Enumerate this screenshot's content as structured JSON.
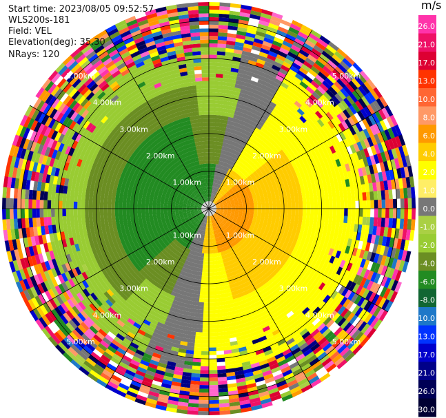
{
  "header": {
    "start_time": "Start time: 2023/08/05 09:52:57",
    "station": "WLS200s-181",
    "field": "Field: VEL",
    "elevation": "Elevation(deg): 35.30",
    "nrays": "NRays: 120"
  },
  "chart_data": {
    "type": "ppi_polar",
    "field": "VEL",
    "units": "m/s",
    "range_rings_km": [
      1.0,
      2.0,
      3.0,
      4.0,
      5.0
    ],
    "ring_labels": [
      "1.00km",
      "2.00km",
      "3.00km",
      "4.00km",
      "5.00km"
    ],
    "radial_lines_deg": [
      0,
      30,
      60,
      90,
      120,
      150
    ],
    "max_range_km": 5.5,
    "colorbar": {
      "unit": "m/s",
      "ticks": [
        "26.0",
        "21.0",
        "17.0",
        "13.0",
        "10.0",
        "8.0",
        "6.0",
        "4.0",
        "2.0",
        "1.0",
        "0.0",
        "-1.0",
        "-2.0",
        "-4.0",
        "-6.0",
        "-8.0",
        "-10.0",
        "-13.0",
        "-17.0",
        "-21.0",
        "-26.0",
        "-30.0"
      ],
      "colors": [
        "#ff33aa",
        "#ee1166",
        "#dd0033",
        "#ff3300",
        "#ff6633",
        "#ff9966",
        "#ff9900",
        "#ffcc00",
        "#ffff00",
        "#ffee66",
        "#777777",
        "#aad044",
        "#99cc33",
        "#6b8e23",
        "#228b22",
        "#116633",
        "#1e78c8",
        "#0033ff",
        "#0000cc",
        "#000088",
        "#000055",
        "#000033"
      ]
    }
  }
}
